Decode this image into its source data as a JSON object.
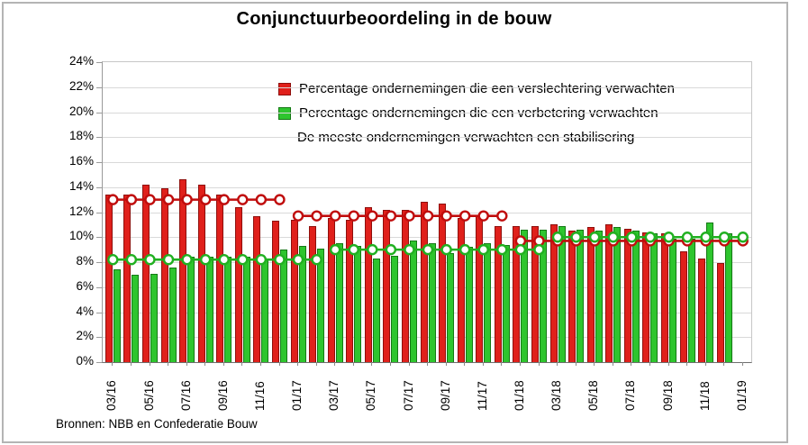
{
  "title": "Conjunctuurbeoordeling in de bouw",
  "source_note": "Bronnen: NBB en Confederatie Bouw",
  "legend": {
    "items": [
      {
        "label": "Percentage ondernemingen die een verslechtering verwachten",
        "swatch": "#e0201b"
      },
      {
        "label": "Percentage ondernemingen die een verbetering verwachten",
        "swatch": "#2ec52e"
      },
      {
        "label": "De meeste ondernemingen verwachten een stabilisering",
        "swatch": null
      }
    ]
  },
  "colors": {
    "red_bar": "#e0201b",
    "red_bar_border": "#8e0f0c",
    "green_bar": "#2ec52e",
    "green_bar_border": "#157815",
    "red_line": "#c00d0d",
    "green_line": "#21b021",
    "gridline": "#d9d9d9",
    "axis": "#9a9a9a",
    "text": "#000000",
    "frame_border": "#b4b4b4",
    "marker_fill": "#ffffff"
  },
  "chart_data": {
    "type": "bar",
    "title": "Conjunctuurbeoordeling in de bouw",
    "xlabel": "",
    "ylabel": "",
    "ylim": [
      0,
      24
    ],
    "grid": "horizontal",
    "legend_position": "top-inside",
    "y_tick_values": [
      0,
      2,
      4,
      6,
      8,
      10,
      12,
      14,
      16,
      18,
      20,
      22,
      24
    ],
    "y_tick_labels": [
      "0%",
      "2%",
      "4%",
      "6%",
      "8%",
      "10%",
      "12%",
      "14%",
      "16%",
      "18%",
      "20%",
      "22%",
      "24%"
    ],
    "x_label_every": 2,
    "x_tick_labels": [
      "03/16",
      "05/16",
      "07/16",
      "09/16",
      "11/16",
      "01/17",
      "03/17",
      "05/17",
      "07/17",
      "09/17",
      "11/17",
      "01/18",
      "03/18",
      "05/18",
      "07/18",
      "09/18",
      "11/18",
      "01/19"
    ],
    "categories": [
      "03/16",
      "04/16",
      "05/16",
      "06/16",
      "07/16",
      "08/16",
      "09/16",
      "10/16",
      "11/16",
      "12/16",
      "01/17",
      "02/17",
      "03/17",
      "04/17",
      "05/17",
      "06/17",
      "07/17",
      "08/17",
      "09/17",
      "10/17",
      "11/17",
      "12/17",
      "01/18",
      "02/18",
      "03/18",
      "04/18",
      "05/18",
      "06/18",
      "07/18",
      "08/18",
      "09/18",
      "10/18",
      "11/18",
      "12/18",
      "01/19"
    ],
    "bar_series": [
      {
        "name": "Percentage ondernemingen die een verslechtering verwachten",
        "color": "#e0201b",
        "border": "#8e0f0c",
        "values": [
          13.4,
          13.4,
          14.2,
          13.9,
          14.6,
          14.2,
          13.4,
          12.4,
          11.7,
          11.3,
          11.4,
          10.9,
          11.5,
          11.4,
          12.4,
          12.2,
          12.2,
          12.8,
          12.7,
          11.5,
          11.7,
          10.9,
          10.9,
          10.9,
          11.0,
          10.5,
          10.8,
          11.0,
          10.7,
          10.4,
          10.3,
          8.9,
          8.3,
          7.9,
          null
        ]
      },
      {
        "name": "Percentage ondernemingen die een verbetering verwachten",
        "color": "#2ec52e",
        "border": "#157815",
        "values": [
          7.4,
          7.0,
          7.1,
          7.6,
          8.4,
          8.4,
          8.4,
          8.4,
          8.3,
          9.0,
          9.3,
          9.1,
          9.5,
          9.3,
          8.3,
          8.5,
          9.7,
          9.5,
          8.7,
          9.2,
          9.5,
          9.4,
          10.6,
          10.6,
          10.9,
          10.6,
          10.5,
          10.8,
          10.5,
          10.3,
          9.9,
          9.9,
          11.2,
          10.3,
          null
        ]
      }
    ],
    "line_series": [
      {
        "name": "verslechtering-trendlijn",
        "color": "#c00d0d",
        "segments": [
          {
            "start": 0,
            "end": 9,
            "value": 13.0
          },
          {
            "start": 10,
            "end": 21,
            "value": 11.7
          },
          {
            "start": 22,
            "end": 34,
            "value": 9.7
          }
        ]
      },
      {
        "name": "verbetering-trendlijn",
        "color": "#21b021",
        "segments": [
          {
            "start": 0,
            "end": 11,
            "value": 8.2
          },
          {
            "start": 12,
            "end": 23,
            "value": 9.0
          },
          {
            "start": 24,
            "end": 34,
            "value": 10.0
          }
        ]
      }
    ],
    "annotation": "De meeste ondernemingen verwachten een stabilisering"
  }
}
